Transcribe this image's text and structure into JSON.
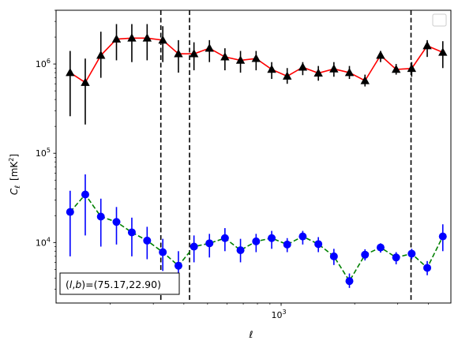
{
  "chart_data": {
    "type": "scatter",
    "title": "",
    "xlabel": "ℓ",
    "ylabel_main": "C",
    "ylabel_sub": "ℓ",
    "ylabel_unit": "[mK",
    "ylabel_unit_sup": "2",
    "ylabel_unit_end": "]",
    "xscale": "log",
    "yscale": "log",
    "xlim": [
      120,
      4950
    ],
    "ylim": [
      2100,
      4000000
    ],
    "x_major_ticks": [
      {
        "value": 1000,
        "label_base": "10",
        "label_exp": "3"
      }
    ],
    "y_major_ticks": [
      {
        "value": 10000,
        "label_base": "10",
        "label_exp": "4"
      },
      {
        "value": 100000,
        "label_base": "10",
        "label_exp": "5"
      },
      {
        "value": 1000000,
        "label_base": "10",
        "label_exp": "6"
      }
    ],
    "vlines": [
      322,
      422,
      3400
    ],
    "annotation": {
      "prefix": "(",
      "var1": "l",
      "sep": ",",
      "var2": "b",
      "suffix": ")=(75.17,22.90)"
    },
    "legend": {
      "position": "top-right",
      "entries": []
    },
    "series": [
      {
        "marker": "triangle",
        "color": "#000000",
        "line_color": "#ff0000",
        "line_style": "solid",
        "points": [
          {
            "x": 137,
            "y": 800000,
            "lo": 260000,
            "hi": 1400000
          },
          {
            "x": 158,
            "y": 620000,
            "lo": 210000,
            "hi": 1150000
          },
          {
            "x": 183,
            "y": 1250000,
            "lo": 700000,
            "hi": 2300000
          },
          {
            "x": 212,
            "y": 1900000,
            "lo": 1100000,
            "hi": 2800000
          },
          {
            "x": 245,
            "y": 1950000,
            "lo": 1050000,
            "hi": 2800000
          },
          {
            "x": 283,
            "y": 1950000,
            "lo": 1100000,
            "hi": 2800000
          },
          {
            "x": 328,
            "y": 1850000,
            "lo": 1050000,
            "hi": 2650000
          },
          {
            "x": 380,
            "y": 1300000,
            "lo": 800000,
            "hi": 1850000
          },
          {
            "x": 440,
            "y": 1300000,
            "lo": 850000,
            "hi": 1750000
          },
          {
            "x": 509,
            "y": 1500000,
            "lo": 1050000,
            "hi": 1850000
          },
          {
            "x": 589,
            "y": 1200000,
            "lo": 850000,
            "hi": 1500000
          },
          {
            "x": 682,
            "y": 1100000,
            "lo": 800000,
            "hi": 1400000
          },
          {
            "x": 790,
            "y": 1150000,
            "lo": 850000,
            "hi": 1400000
          },
          {
            "x": 915,
            "y": 870000,
            "lo": 680000,
            "hi": 1050000
          },
          {
            "x": 1059,
            "y": 730000,
            "lo": 600000,
            "hi": 900000
          },
          {
            "x": 1226,
            "y": 920000,
            "lo": 750000,
            "hi": 1050000
          },
          {
            "x": 1420,
            "y": 790000,
            "lo": 650000,
            "hi": 950000
          },
          {
            "x": 1644,
            "y": 880000,
            "lo": 720000,
            "hi": 1050000
          },
          {
            "x": 1903,
            "y": 800000,
            "lo": 680000,
            "hi": 950000
          },
          {
            "x": 2204,
            "y": 650000,
            "lo": 560000,
            "hi": 760000
          },
          {
            "x": 2552,
            "y": 1250000,
            "lo": 1050000,
            "hi": 1400000
          },
          {
            "x": 2955,
            "y": 870000,
            "lo": 760000,
            "hi": 1000000
          },
          {
            "x": 3421,
            "y": 890000,
            "lo": 720000,
            "hi": 1050000
          },
          {
            "x": 3961,
            "y": 1600000,
            "lo": 1200000,
            "hi": 1850000
          },
          {
            "x": 4587,
            "y": 1350000,
            "lo": 900000,
            "hi": 1800000
          }
        ]
      },
      {
        "marker": "circle",
        "color": "#0000ff",
        "line_color": "#008000",
        "line_style": "dashed",
        "points": [
          {
            "x": 137,
            "y": 22000,
            "lo": 7000,
            "hi": 38000
          },
          {
            "x": 158,
            "y": 34500,
            "lo": 12000,
            "hi": 58000
          },
          {
            "x": 183,
            "y": 19500,
            "lo": 9000,
            "hi": 31000
          },
          {
            "x": 212,
            "y": 17000,
            "lo": 9500,
            "hi": 25000
          },
          {
            "x": 245,
            "y": 13000,
            "lo": 7000,
            "hi": 19000
          },
          {
            "x": 283,
            "y": 10500,
            "lo": 6500,
            "hi": 15000
          },
          {
            "x": 328,
            "y": 7800,
            "lo": 4800,
            "hi": 11000
          },
          {
            "x": 380,
            "y": 5500,
            "lo": 3200,
            "hi": 8000
          },
          {
            "x": 440,
            "y": 9000,
            "lo": 6000,
            "hi": 12000
          },
          {
            "x": 509,
            "y": 9800,
            "lo": 6800,
            "hi": 12500
          },
          {
            "x": 589,
            "y": 11200,
            "lo": 8000,
            "hi": 14500
          },
          {
            "x": 682,
            "y": 8200,
            "lo": 6000,
            "hi": 11000
          },
          {
            "x": 790,
            "y": 10300,
            "lo": 7800,
            "hi": 12500
          },
          {
            "x": 915,
            "y": 11200,
            "lo": 8500,
            "hi": 13500
          },
          {
            "x": 1059,
            "y": 9500,
            "lo": 7800,
            "hi": 11200
          },
          {
            "x": 1226,
            "y": 11700,
            "lo": 9500,
            "hi": 13500
          },
          {
            "x": 1420,
            "y": 9600,
            "lo": 7800,
            "hi": 11500
          },
          {
            "x": 1644,
            "y": 7000,
            "lo": 5600,
            "hi": 8500
          },
          {
            "x": 1903,
            "y": 3700,
            "lo": 3100,
            "hi": 4500
          },
          {
            "x": 2204,
            "y": 7300,
            "lo": 6300,
            "hi": 8400
          },
          {
            "x": 2552,
            "y": 8800,
            "lo": 7700,
            "hi": 9800
          },
          {
            "x": 2955,
            "y": 6800,
            "lo": 5700,
            "hi": 7800
          },
          {
            "x": 3421,
            "y": 7500,
            "lo": 6500,
            "hi": 8500
          },
          {
            "x": 3961,
            "y": 5200,
            "lo": 4300,
            "hi": 6200
          },
          {
            "x": 4587,
            "y": 11700,
            "lo": 8000,
            "hi": 16000
          }
        ]
      }
    ]
  }
}
